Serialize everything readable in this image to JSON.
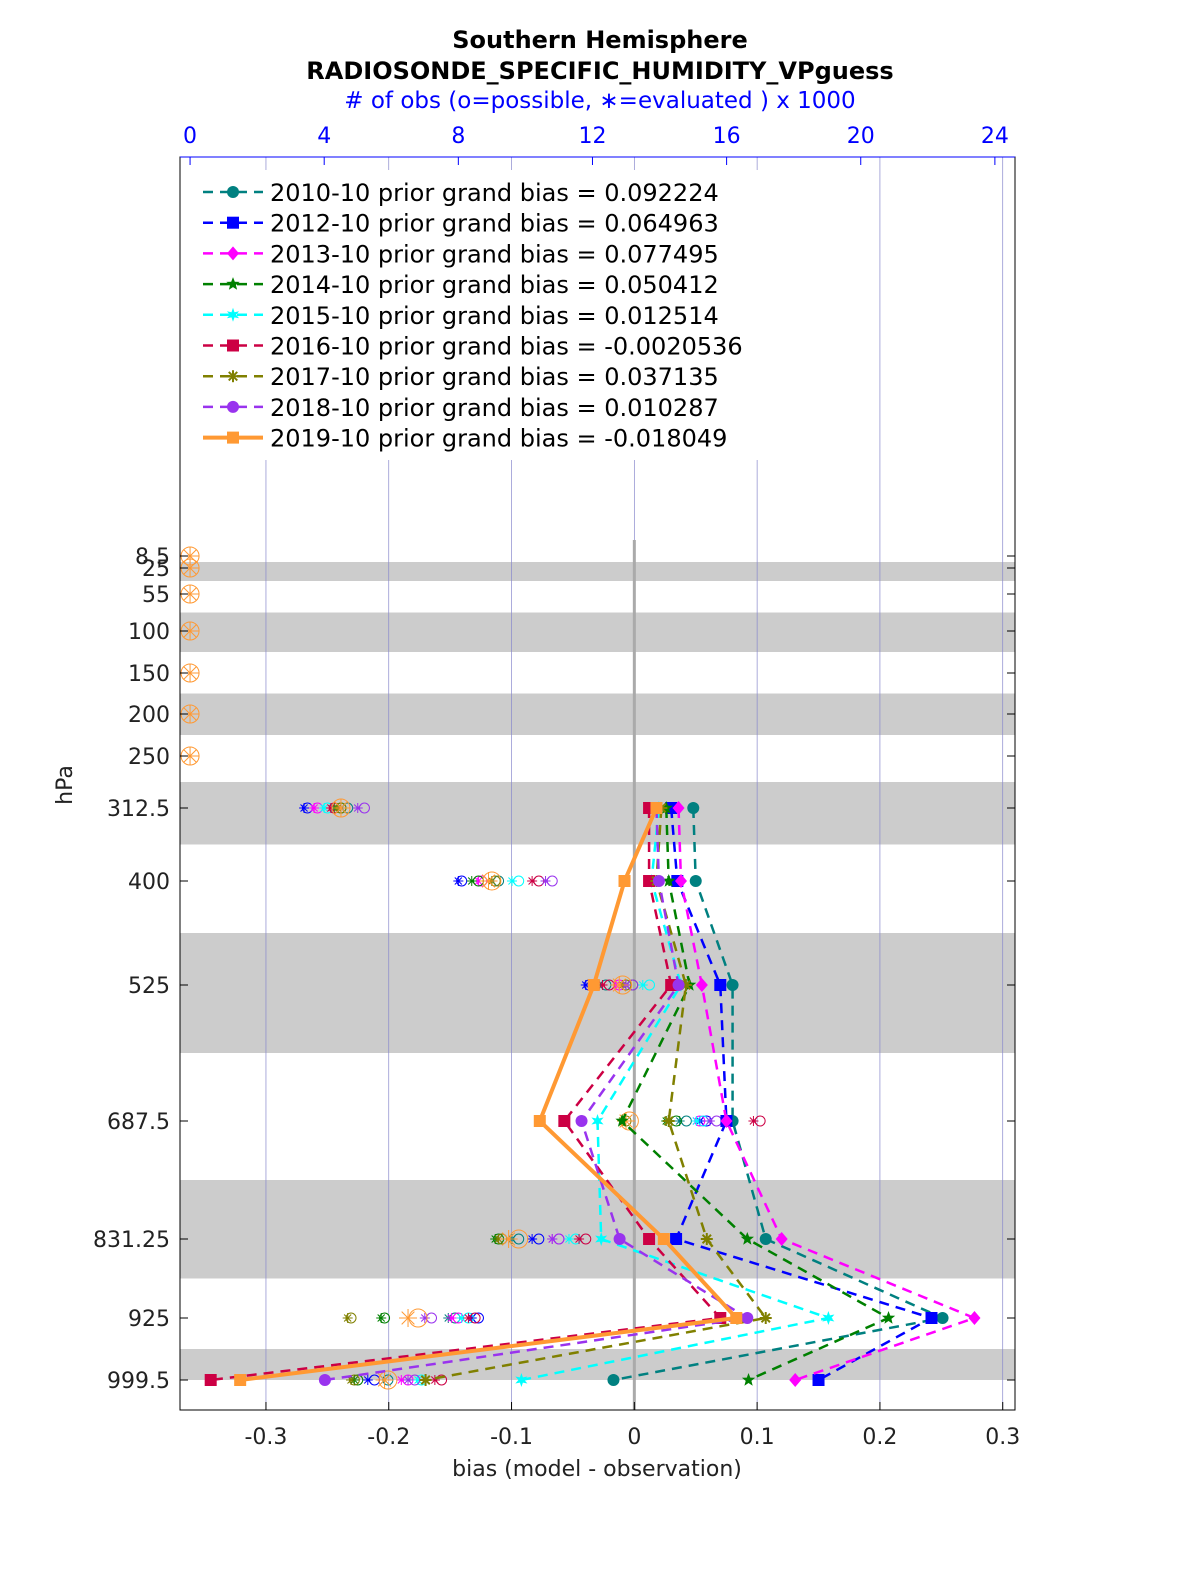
{
  "chart_data": {
    "type": "line",
    "title": "Southern Hemisphere",
    "subtitle": "RADIOSONDE_SPECIFIC_HUMIDITY_VPguess",
    "top_axis_label": "# of obs (o=possible, ∗=evaluated ) x 1000",
    "xlabel": "bias (model - observation)",
    "ylabel": "hPa",
    "xlim": [
      -0.37,
      0.31
    ],
    "x_ticks": [
      -0.3,
      -0.2,
      -0.1,
      0,
      0.1,
      0.2,
      0.3
    ],
    "x_tick_labels": [
      "-0.3",
      "-0.2",
      "-0.1",
      "0",
      "0.1",
      "0.2",
      "0.3"
    ],
    "top_ticks": [
      0,
      4,
      8,
      12,
      16,
      20,
      24
    ],
    "top_xlim": [
      -0.3,
      24.6
    ],
    "levels": [
      8.5,
      25,
      55,
      100,
      150,
      200,
      250,
      312.5,
      400,
      525,
      687.5,
      831.25,
      925,
      999.5
    ],
    "level_labels": [
      "8.5",
      "25",
      "55",
      "100",
      "150",
      "200",
      "250",
      "312.5",
      "400",
      "525",
      "687.5",
      "831.25",
      "925",
      "999.5"
    ],
    "legend_position": "top-left",
    "grid": "vertical",
    "series": [
      {
        "name": "2010-10 prior grand bias = 0.092224",
        "color": "#008080",
        "marker": "circle",
        "dash": true,
        "bias": [
          null,
          null,
          null,
          null,
          null,
          null,
          null,
          0.048,
          0.05,
          0.08,
          0.08,
          0.107,
          0.251,
          -0.017
        ],
        "possible": [
          null,
          null,
          null,
          null,
          null,
          null,
          null,
          4.7,
          9.2,
          12.4,
          14.8,
          9.8,
          7.9,
          5.9
        ],
        "evaluated": [
          null,
          null,
          null,
          null,
          null,
          null,
          null,
          4.5,
          9.0,
          12.2,
          14.6,
          9.6,
          7.7,
          5.8
        ]
      },
      {
        "name": "2012-10 prior grand bias = 0.064963",
        "color": "#0000ff",
        "marker": "square",
        "dash": true,
        "bias": [
          null,
          null,
          null,
          null,
          null,
          null,
          null,
          0.03,
          0.035,
          0.07,
          0.075,
          0.034,
          0.242,
          0.15
        ],
        "possible": [
          null,
          null,
          null,
          null,
          null,
          null,
          null,
          3.5,
          8.1,
          11.9,
          15.4,
          10.4,
          8.6,
          5.5
        ],
        "evaluated": [
          null,
          null,
          null,
          null,
          null,
          null,
          null,
          3.4,
          8.0,
          11.8,
          15.2,
          10.2,
          8.4,
          5.3
        ]
      },
      {
        "name": "2013-10 prior grand bias = 0.077495",
        "color": "#ff00ff",
        "marker": "diamond",
        "dash": true,
        "bias": [
          null,
          null,
          null,
          null,
          null,
          null,
          null,
          0.036,
          0.038,
          0.055,
          0.075,
          0.12,
          0.277,
          0.131
        ],
        "possible": [
          null,
          null,
          null,
          null,
          null,
          null,
          null,
          3.8,
          8.7,
          12.8,
          15.2,
          11.0,
          8.0,
          6.5
        ],
        "evaluated": [
          null,
          null,
          null,
          null,
          null,
          null,
          null,
          3.7,
          8.6,
          12.7,
          15.1,
          10.8,
          7.8,
          6.3
        ]
      },
      {
        "name": "2014-10 prior grand bias = 0.050412",
        "color": "#008000",
        "marker": "pentagram",
        "dash": true,
        "bias": [
          null,
          null,
          null,
          null,
          null,
          null,
          null,
          0.026,
          0.028,
          0.045,
          -0.01,
          0.092,
          0.207,
          0.093
        ],
        "possible": [
          null,
          null,
          null,
          null,
          null,
          null,
          null,
          4.5,
          8.6,
          13.2,
          14.5,
          9.2,
          5.8,
          5.0
        ],
        "evaluated": [
          null,
          null,
          null,
          null,
          null,
          null,
          null,
          4.3,
          8.4,
          13.0,
          14.2,
          9.1,
          5.7,
          4.9
        ]
      },
      {
        "name": "2015-10 prior grand bias = 0.012514",
        "color": "#00ffff",
        "marker": "hexagram",
        "dash": true,
        "bias": [
          null,
          null,
          null,
          null,
          null,
          null,
          null,
          0.02,
          0.014,
          0.038,
          -0.03,
          -0.027,
          0.158,
          -0.092
        ],
        "possible": [
          null,
          null,
          null,
          null,
          null,
          null,
          null,
          4.1,
          9.8,
          13.7,
          15.3,
          11.5,
          8.3,
          6.9
        ],
        "evaluated": [
          null,
          null,
          null,
          null,
          null,
          null,
          null,
          4.0,
          9.6,
          13.5,
          15.1,
          11.3,
          8.1,
          6.8
        ]
      },
      {
        "name": "2016-10 prior grand bias = -0.0020536",
        "color": "#cc0044",
        "marker": "square",
        "dash": true,
        "bias": [
          null,
          null,
          null,
          null,
          null,
          null,
          null,
          0.012,
          0.012,
          0.03,
          -0.057,
          0.012,
          0.07,
          -0.345
        ],
        "possible": [
          null,
          null,
          null,
          null,
          null,
          null,
          null,
          4.3,
          10.4,
          12.5,
          17.0,
          11.8,
          8.5,
          7.5
        ],
        "evaluated": [
          null,
          null,
          null,
          null,
          null,
          null,
          null,
          4.2,
          10.2,
          12.3,
          16.8,
          11.6,
          8.3,
          7.3
        ]
      },
      {
        "name": "2017-10 prior grand bias = 0.037135",
        "color": "#808000",
        "marker": "asterisk",
        "dash": true,
        "bias": [
          null,
          null,
          null,
          null,
          null,
          null,
          null,
          0.022,
          0.018,
          0.042,
          0.028,
          0.059,
          0.107,
          -0.17
        ],
        "possible": [
          null,
          null,
          null,
          null,
          null,
          null,
          null,
          4.5,
          9.1,
          13.0,
          13.0,
          9.3,
          4.8,
          4.9
        ],
        "evaluated": [
          null,
          null,
          null,
          null,
          null,
          null,
          null,
          4.4,
          9.0,
          12.9,
          12.9,
          9.2,
          4.7,
          4.8
        ]
      },
      {
        "name": "2018-10 prior grand bias = 0.010287",
        "color": "#9933ee",
        "marker": "circle",
        "dash": true,
        "bias": [
          null,
          null,
          null,
          null,
          null,
          null,
          null,
          0.018,
          0.02,
          0.036,
          -0.043,
          -0.012,
          0.092,
          -0.252
        ],
        "possible": [
          null,
          null,
          null,
          null,
          null,
          null,
          null,
          5.2,
          10.8,
          13.2,
          15.7,
          11.0,
          7.2,
          6.7
        ],
        "evaluated": [
          null,
          null,
          null,
          null,
          null,
          null,
          null,
          5.0,
          10.6,
          13.0,
          15.5,
          10.8,
          7.0,
          6.5
        ]
      },
      {
        "name": "2019-10 prior grand bias = -0.018049",
        "color": "#ff9933",
        "marker": "square",
        "dash": false,
        "bias": [
          null,
          null,
          null,
          null,
          null,
          null,
          null,
          0.018,
          -0.008,
          -0.033,
          -0.077,
          0.024,
          0.083,
          -0.321
        ],
        "possible": [
          0,
          0,
          0,
          0,
          0,
          0,
          0,
          4.5,
          9.0,
          12.9,
          13.1,
          9.8,
          6.8,
          5.9
        ],
        "evaluated": [
          0,
          0,
          0,
          0,
          0,
          0,
          0,
          4.5,
          8.9,
          12.8,
          13.0,
          9.5,
          6.5,
          5.8
        ]
      }
    ]
  }
}
